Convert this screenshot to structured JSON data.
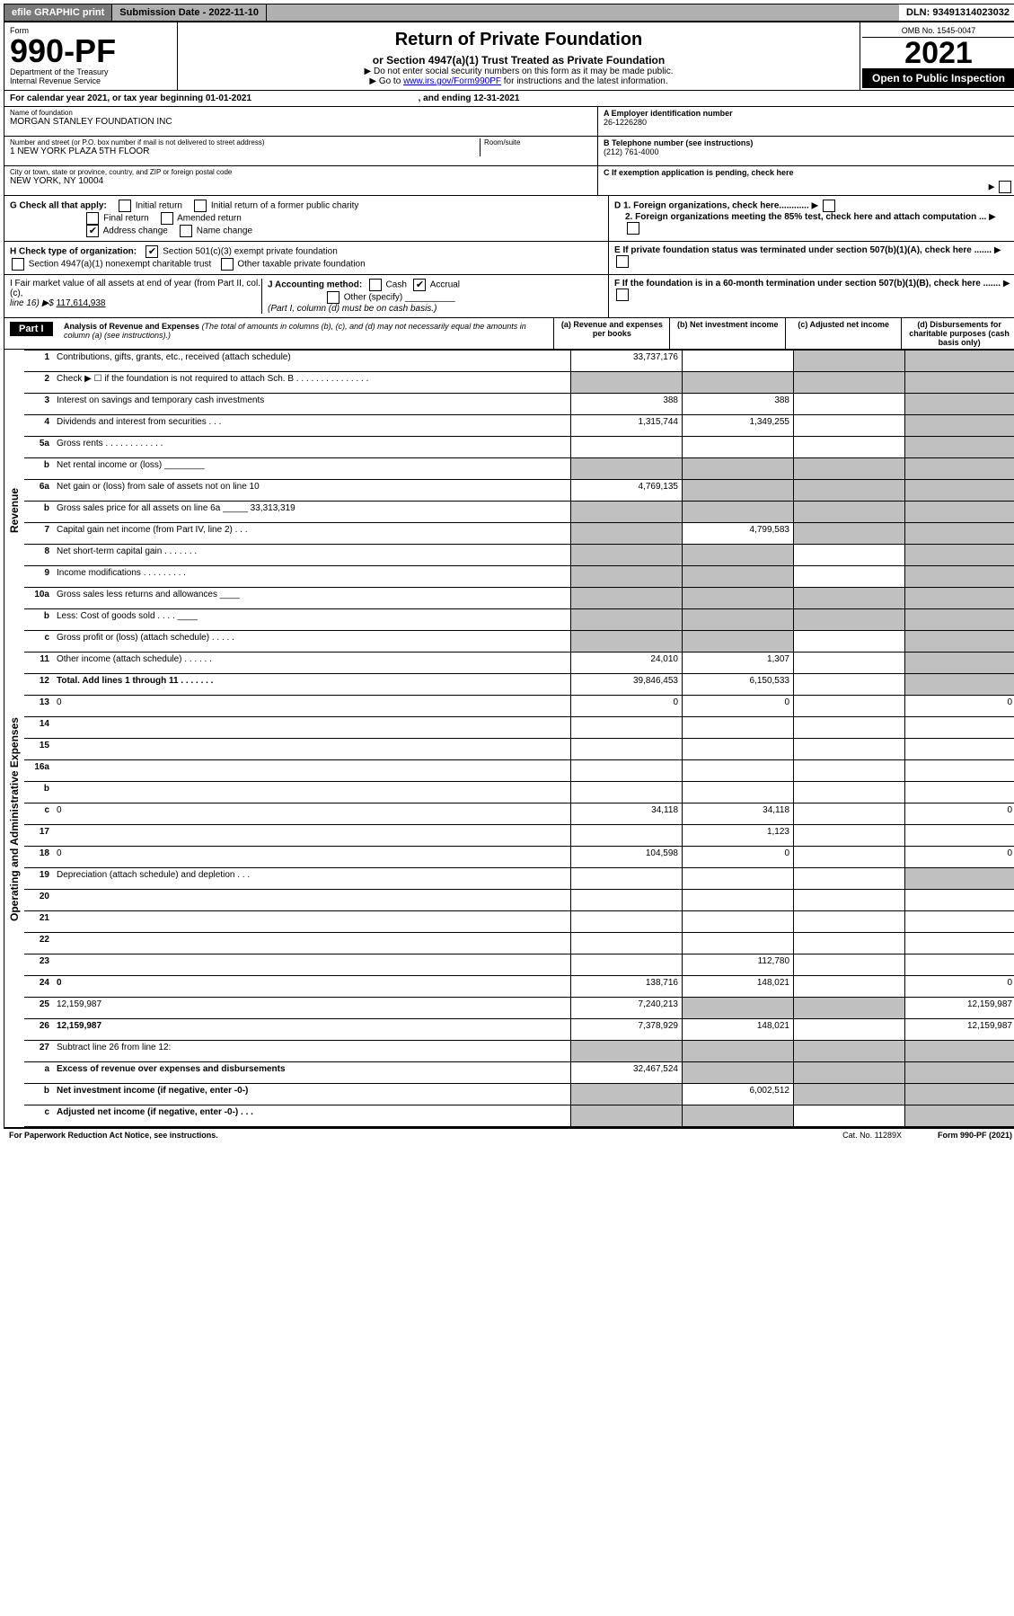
{
  "topbar": {
    "efile": "efile GRAPHIC print",
    "subdate_label": "Submission Date - ",
    "subdate": "2022-11-10",
    "dln_label": "DLN: ",
    "dln": "93491314023032"
  },
  "header": {
    "form_label": "Form",
    "form_no": "990-PF",
    "dept": "Department of the Treasury",
    "irs": "Internal Revenue Service",
    "title": "Return of Private Foundation",
    "subtitle": "or Section 4947(a)(1) Trust Treated as Private Foundation",
    "instr1": "▶ Do not enter social security numbers on this form as it may be made public.",
    "instr2_pre": "▶ Go to ",
    "instr2_link": "www.irs.gov/Form990PF",
    "instr2_post": " for instructions and the latest information.",
    "omb": "OMB No. 1545-0047",
    "year": "2021",
    "open": "Open to Public Inspection"
  },
  "cal": {
    "text_pre": "For calendar year 2021, or tax year beginning ",
    "begin": "01-01-2021",
    "text_mid": " , and ending ",
    "end": "12-31-2021"
  },
  "info": {
    "name_lbl": "Name of foundation",
    "name": "MORGAN STANLEY FOUNDATION INC",
    "addr_lbl": "Number and street (or P.O. box number if mail is not delivered to street address)",
    "addr": "1 NEW YORK PLAZA 5TH FLOOR",
    "room_lbl": "Room/suite",
    "city_lbl": "City or town, state or province, country, and ZIP or foreign postal code",
    "city": "NEW YORK, NY  10004",
    "a_lbl": "A Employer identification number",
    "a_val": "26-1226280",
    "b_lbl": "B Telephone number (see instructions)",
    "b_val": "(212) 761-4000",
    "c_lbl": "C If exemption application is pending, check here",
    "d1": "D 1. Foreign organizations, check here............",
    "d2": "2. Foreign organizations meeting the 85% test, check here and attach computation ...",
    "e": "E  If private foundation status was terminated under section 507(b)(1)(A), check here .......",
    "f": "F  If the foundation is in a 60-month termination under section 507(b)(1)(B), check here ......."
  },
  "g": {
    "label": "G Check all that apply:",
    "opts": [
      "Initial return",
      "Final return",
      "Address change",
      "Initial return of a former public charity",
      "Amended return",
      "Name change"
    ],
    "checked_idx": 2
  },
  "h": {
    "label": "H Check type of organization:",
    "opt1": "Section 501(c)(3) exempt private foundation",
    "opt2": "Section 4947(a)(1) nonexempt charitable trust",
    "opt3": "Other taxable private foundation"
  },
  "i": {
    "label1": "I Fair market value of all assets at end of year (from Part II, col. (c),",
    "label2": "line 16) ▶$ ",
    "val": "117,614,938"
  },
  "j": {
    "label": "J Accounting method:",
    "cash": "Cash",
    "accrual": "Accrual",
    "other": "Other (specify)",
    "note": "(Part I, column (d) must be on cash basis.)"
  },
  "part1": {
    "label": "Part I",
    "title": "Analysis of Revenue and Expenses ",
    "title_note": "(The total of amounts in columns (b), (c), and (d) may not necessarily equal the amounts in column (a) (see instructions).)",
    "col_a": "(a)  Revenue and expenses per books",
    "col_b": "(b)  Net investment income",
    "col_c": "(c)  Adjusted net income",
    "col_d": "(d)  Disbursements for charitable purposes (cash basis only)"
  },
  "side": {
    "rev": "Revenue",
    "exp": "Operating and Administrative Expenses"
  },
  "rows": [
    {
      "n": "1",
      "d": "Contributions, gifts, grants, etc., received (attach schedule)",
      "a": "33,737,176",
      "b": "",
      "c_grey": true,
      "d_grey": true
    },
    {
      "n": "2",
      "d": "Check ▶ ☐ if the foundation is not required to attach Sch. B  .  .  .  .  .  .  .  .  .  .  .  .  .  .  .",
      "a_grey": true,
      "b_grey": true,
      "c_grey": true,
      "d_grey": true
    },
    {
      "n": "3",
      "d": "Interest on savings and temporary cash investments",
      "a": "388",
      "b": "388",
      "c": "",
      "d_grey": true
    },
    {
      "n": "4",
      "d": "Dividends and interest from securities  .  .  .",
      "a": "1,315,744",
      "b": "1,349,255",
      "c": "",
      "d_grey": true
    },
    {
      "n": "5a",
      "d": "Gross rents  .  .  .  .  .  .  .  .  .  .  .  .",
      "a": "",
      "b": "",
      "c": "",
      "d_grey": true
    },
    {
      "n": "b",
      "d": "Net rental income or (loss)  ________",
      "a_grey": true,
      "b_grey": true,
      "c_grey": true,
      "d_grey": true
    },
    {
      "n": "6a",
      "d": "Net gain or (loss) from sale of assets not on line 10",
      "a": "4,769,135",
      "b_grey": true,
      "c_grey": true,
      "d_grey": true
    },
    {
      "n": "b",
      "d": "Gross sales price for all assets on line 6a _____ 33,313,319",
      "a_grey": true,
      "b_grey": true,
      "c_grey": true,
      "d_grey": true
    },
    {
      "n": "7",
      "d": "Capital gain net income (from Part IV, line 2)  .  .  .",
      "a_grey": true,
      "b": "4,799,583",
      "c_grey": true,
      "d_grey": true
    },
    {
      "n": "8",
      "d": "Net short-term capital gain  .  .  .  .  .  .  .",
      "a_grey": true,
      "b_grey": true,
      "c": "",
      "d_grey": true
    },
    {
      "n": "9",
      "d": "Income modifications  .  .  .  .  .  .  .  .  .",
      "a_grey": true,
      "b_grey": true,
      "c": "",
      "d_grey": true
    },
    {
      "n": "10a",
      "d": "Gross sales less returns and allowances  ____",
      "a_grey": true,
      "b_grey": true,
      "c_grey": true,
      "d_grey": true
    },
    {
      "n": "b",
      "d": "Less: Cost of goods sold  .  .  .  .  ____",
      "a_grey": true,
      "b_grey": true,
      "c_grey": true,
      "d_grey": true
    },
    {
      "n": "c",
      "d": "Gross profit or (loss) (attach schedule)  .  .  .  .  .",
      "a_grey": true,
      "b_grey": true,
      "c": "",
      "d_grey": true
    },
    {
      "n": "11",
      "d": "Other income (attach schedule)  .  .  .  .  .  .",
      "a": "24,010",
      "b": "1,307",
      "c": "",
      "d_grey": true
    },
    {
      "n": "12",
      "d": "Total. Add lines 1 through 11  .  .  .  .  .  .  .",
      "a": "39,846,453",
      "b": "6,150,533",
      "c": "",
      "d_grey": true,
      "bold": true
    },
    {
      "n": "13",
      "d": "0",
      "a": "0",
      "b": "0",
      "c": ""
    },
    {
      "n": "14",
      "d": "",
      "a": "",
      "b": "",
      "c": ""
    },
    {
      "n": "15",
      "d": "",
      "a": "",
      "b": "",
      "c": ""
    },
    {
      "n": "16a",
      "d": "",
      "a": "",
      "b": "",
      "c": ""
    },
    {
      "n": "b",
      "d": "",
      "a": "",
      "b": "",
      "c": ""
    },
    {
      "n": "c",
      "d": "0",
      "a": "34,118",
      "b": "34,118",
      "c": ""
    },
    {
      "n": "17",
      "d": "",
      "a": "",
      "b": "1,123",
      "c": ""
    },
    {
      "n": "18",
      "d": "0",
      "a": "104,598",
      "b": "0",
      "c": ""
    },
    {
      "n": "19",
      "d": "Depreciation (attach schedule) and depletion  .  .  .",
      "a": "",
      "b": "",
      "c": "",
      "d_grey": true
    },
    {
      "n": "20",
      "d": "",
      "a": "",
      "b": "",
      "c": ""
    },
    {
      "n": "21",
      "d": "",
      "a": "",
      "b": "",
      "c": ""
    },
    {
      "n": "22",
      "d": "",
      "a": "",
      "b": "",
      "c": ""
    },
    {
      "n": "23",
      "d": "",
      "a": "",
      "b": "112,780",
      "c": ""
    },
    {
      "n": "24",
      "d": "0",
      "a": "138,716",
      "b": "148,021",
      "c": "",
      "bold": true
    },
    {
      "n": "25",
      "d": "12,159,987",
      "a": "7,240,213",
      "b_grey": true,
      "c_grey": true
    },
    {
      "n": "26",
      "d": "12,159,987",
      "a": "7,378,929",
      "b": "148,021",
      "c": "",
      "bold": true
    },
    {
      "n": "27",
      "d": "Subtract line 26 from line 12:",
      "a_grey": true,
      "b_grey": true,
      "c_grey": true,
      "d_grey": true
    },
    {
      "n": "a",
      "d": "Excess of revenue over expenses and disbursements",
      "a": "32,467,524",
      "b_grey": true,
      "c_grey": true,
      "d_grey": true,
      "bold": true
    },
    {
      "n": "b",
      "d": "Net investment income (if negative, enter -0-)",
      "a_grey": true,
      "b": "6,002,512",
      "c_grey": true,
      "d_grey": true,
      "bold": true
    },
    {
      "n": "c",
      "d": "Adjusted net income (if negative, enter -0-)  .  .  .",
      "a_grey": true,
      "b_grey": true,
      "c": "",
      "d_grey": true,
      "bold": true
    }
  ],
  "footer": {
    "left": "For Paperwork Reduction Act Notice, see instructions.",
    "mid": "Cat. No. 11289X",
    "right": "Form 990-PF (2021)"
  }
}
